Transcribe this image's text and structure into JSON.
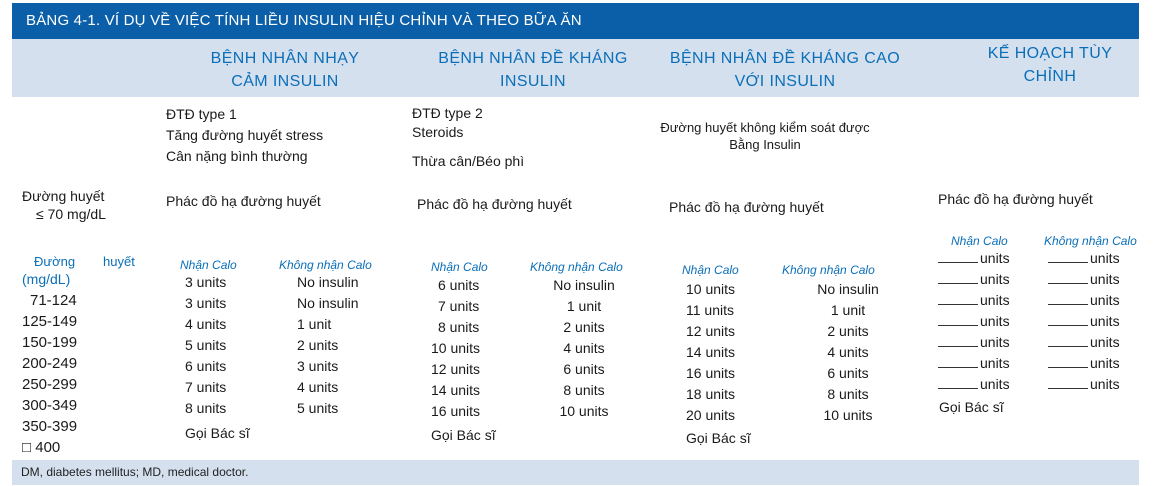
{
  "title": "BẢNG 4-1.    VÍ DỤ VỀ VIỆC TÍNH LIỀU INSULIN HIỆU CHỈNH VÀ THEO BỮA ĂN",
  "columns": [
    {
      "line1": "BỆNH NHÂN NHẠY",
      "line2": "CẢM INSULIN"
    },
    {
      "line1": "BỆNH NHÂN ĐỀ KHÁNG",
      "line2": "INSULIN"
    },
    {
      "line1": "BỆNH NHÂN ĐỀ KHÁNG CAO",
      "line2": "VỚI INSULIN"
    },
    {
      "line1": "KẾ HOẠCH TÙY",
      "line2": "CHỈNH"
    }
  ],
  "left": {
    "bg_label_1": "Đường huyết",
    "bg_label_2": "≤ 70 mg/dL",
    "range_label_1": "Đường",
    "range_label_2": "huyết",
    "range_label_3": "(mg/dL)",
    "ranges": [
      "71-124",
      "125-149",
      "150-199",
      "200-249",
      "250-299",
      "300-349",
      "350-399",
      "□ 400"
    ]
  },
  "sensitive": {
    "desc": [
      "ĐTĐ type 1",
      "Tăng đường huyết stress",
      "Cân nặng bình thường"
    ],
    "hypo": "Phác đồ hạ đường huyết",
    "with_cal": "Nhận Calo",
    "no_cal": "Không nhận Calo",
    "with_values": [
      "3 units",
      "3 units",
      "4 units",
      "5 units",
      "6 units",
      "7 units",
      "8 units"
    ],
    "no_values": [
      "No insulin",
      "No insulin",
      "1 unit",
      "2 units",
      "3 units",
      "4 units",
      "5 units"
    ],
    "call": "Gọi Bác sĩ"
  },
  "resistant": {
    "desc": [
      "ĐTĐ type 2",
      "Steroids",
      "Thừa cân/Béo phì"
    ],
    "hypo": "Phác đồ hạ đường huyết",
    "with_cal": "Nhận Calo",
    "no_cal": "Không nhận Calo",
    "with_values": [
      "6 units",
      "7 units",
      "8 units",
      "10 units",
      "12 units",
      "14 units",
      "16 units"
    ],
    "no_values": [
      "No insulin",
      "1 unit",
      "2 units",
      "4 units",
      "6 units",
      "8 units",
      "10 units"
    ],
    "call": "Gọi Bác sĩ"
  },
  "high_resistant": {
    "desc": [
      "Đường huyết không kiểm soát được",
      "Bằng Insulin"
    ],
    "hypo": "Phác đồ hạ đường huyết",
    "with_cal": "Nhận Calo",
    "no_cal": "Không nhận Calo",
    "with_values": [
      "10 units",
      "11 units",
      "12 units",
      "14 units",
      "16 units",
      "18 units",
      "20 units"
    ],
    "no_values": [
      "No insulin",
      "1 unit",
      "2 units",
      "4 units",
      "6 units",
      "8 units",
      "10 units"
    ],
    "call": "Gọi Bác sĩ"
  },
  "custom": {
    "hypo": "Phác đồ hạ đường huyết",
    "with_cal": "Nhận Calo",
    "no_cal": "Không nhận Calo",
    "unit_word": "units",
    "call": "Gọi Bác sĩ"
  },
  "footnote": "DM, diabetes mellitus; MD, medical doctor."
}
